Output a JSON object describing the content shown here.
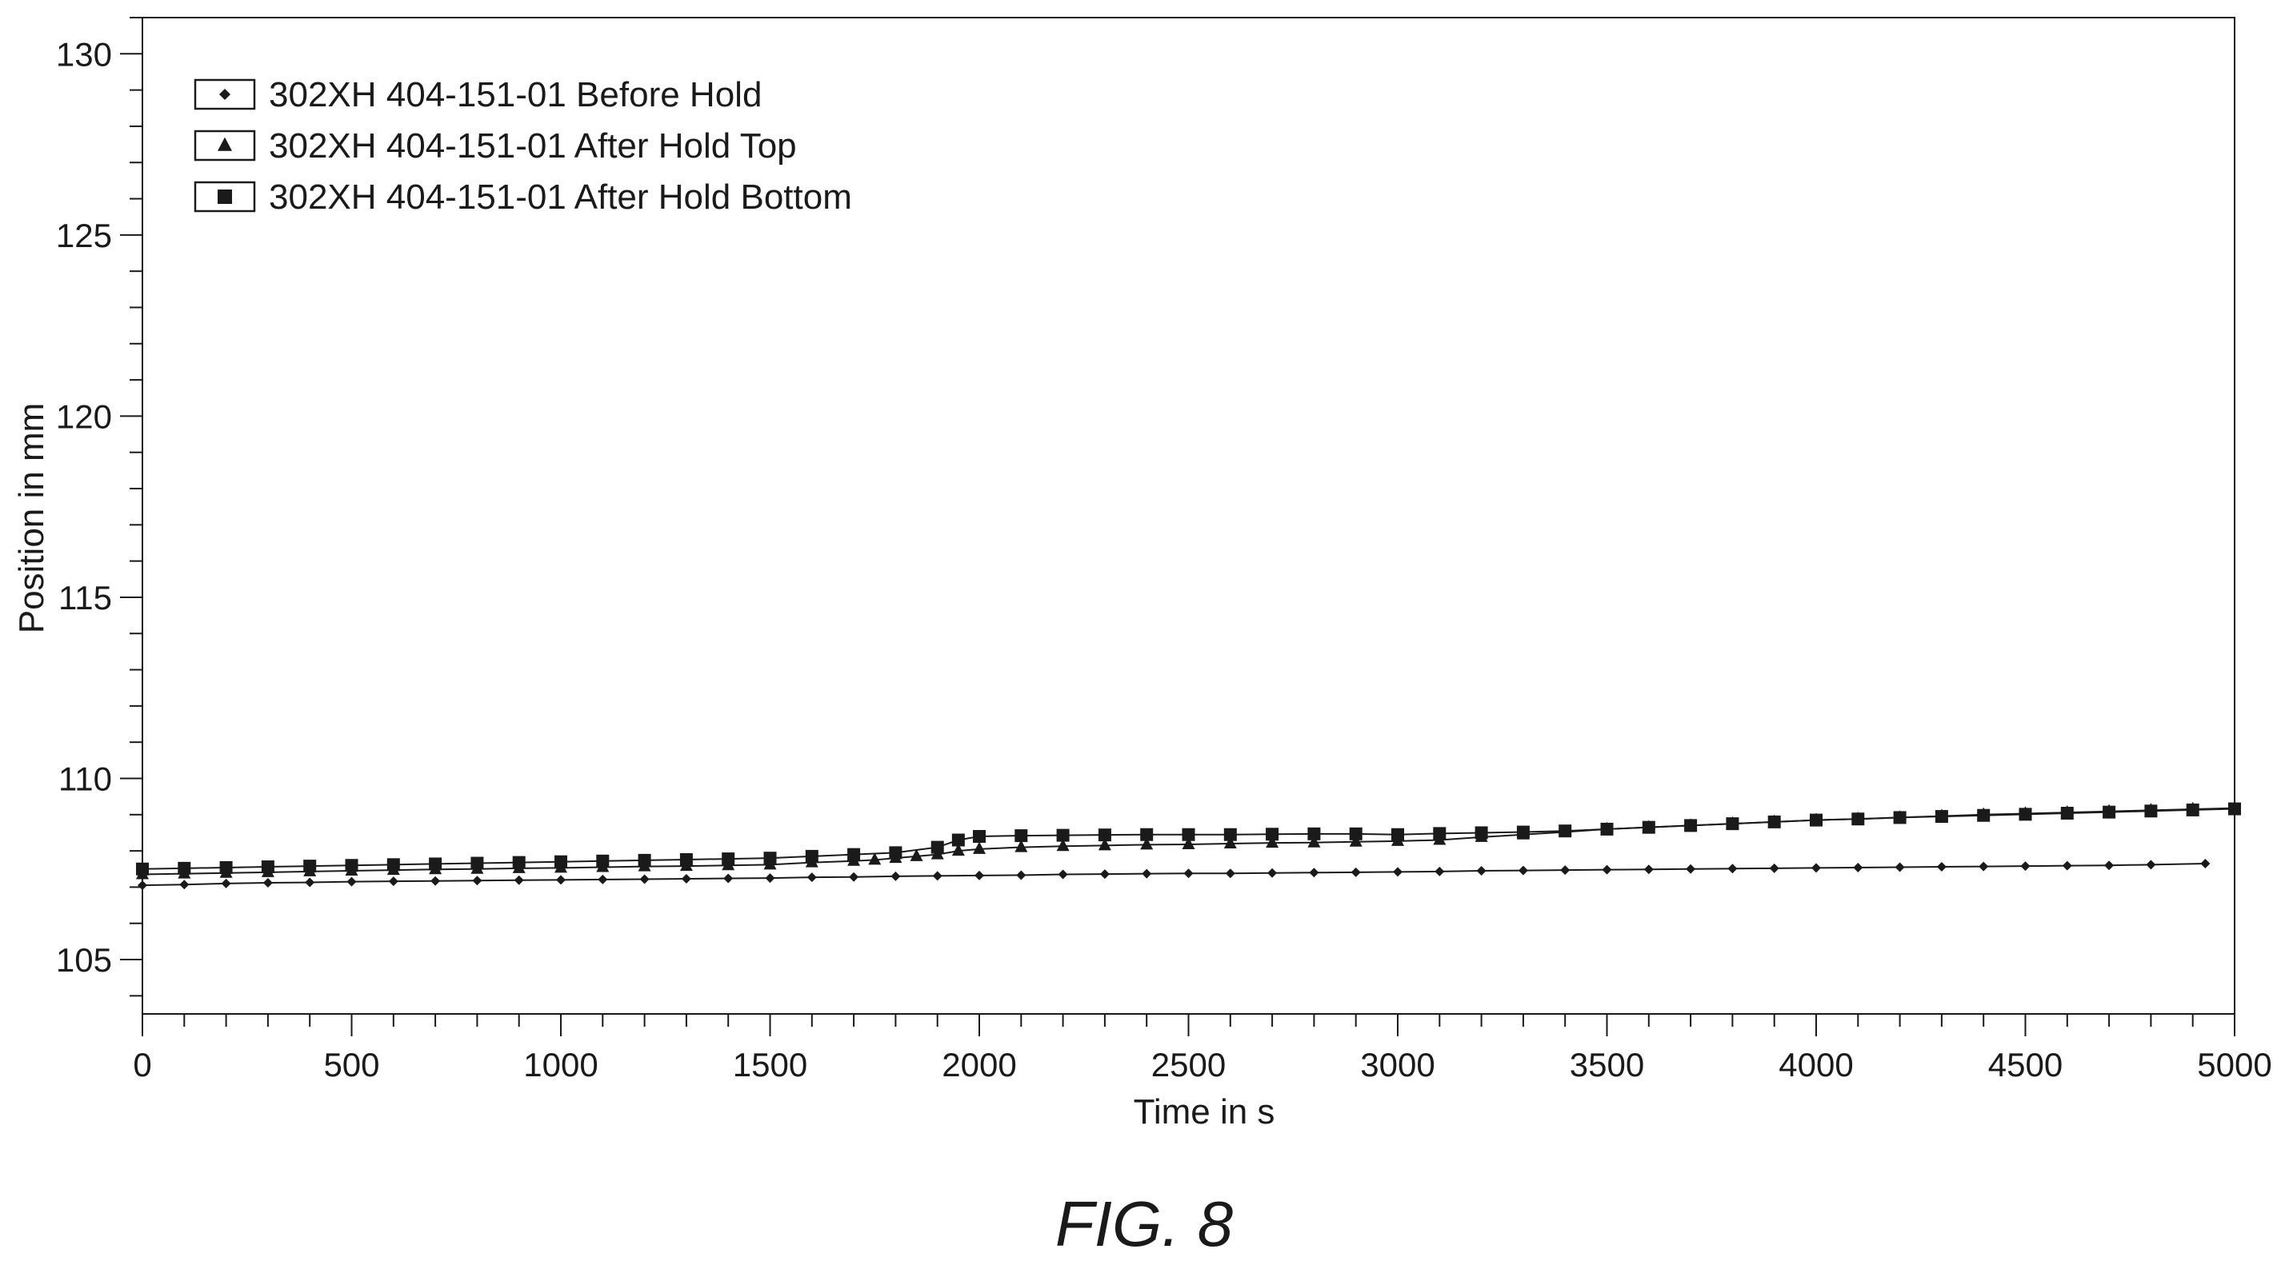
{
  "figure_label": "FIG. 8",
  "chart_data": {
    "type": "scatter",
    "title": "",
    "xlabel": "Time in s",
    "ylabel": "Position in mm",
    "xlim": [
      0,
      5000
    ],
    "ylim": [
      103.5,
      131
    ],
    "x_ticks": [
      0,
      500,
      1000,
      1500,
      2000,
      2500,
      3000,
      3500,
      4000,
      4500,
      5000
    ],
    "y_ticks": [
      105,
      110,
      115,
      120,
      125,
      130
    ],
    "grid": false,
    "legend_position": "top-left",
    "series": [
      {
        "name": "302XH 404-151-01 Before Hold",
        "marker": "diamond",
        "x": [
          0,
          100,
          200,
          300,
          400,
          500,
          600,
          700,
          800,
          900,
          1000,
          1100,
          1200,
          1300,
          1400,
          1500,
          1600,
          1700,
          1800,
          1900,
          2000,
          2100,
          2200,
          2300,
          2400,
          2500,
          2600,
          2700,
          2800,
          2900,
          3000,
          3100,
          3200,
          3300,
          3400,
          3500,
          3600,
          3700,
          3800,
          3900,
          4000,
          4100,
          4200,
          4300,
          4400,
          4500,
          4600,
          4700,
          4800,
          4930
        ],
        "y": [
          107.05,
          107.07,
          107.1,
          107.12,
          107.13,
          107.15,
          107.16,
          107.17,
          107.18,
          107.19,
          107.2,
          107.21,
          107.22,
          107.23,
          107.24,
          107.25,
          107.27,
          107.28,
          107.3,
          107.31,
          107.32,
          107.33,
          107.35,
          107.36,
          107.37,
          107.38,
          107.38,
          107.39,
          107.4,
          107.41,
          107.42,
          107.43,
          107.45,
          107.46,
          107.47,
          107.48,
          107.49,
          107.5,
          107.51,
          107.52,
          107.53,
          107.54,
          107.55,
          107.56,
          107.57,
          107.58,
          107.59,
          107.6,
          107.62,
          107.65
        ]
      },
      {
        "name": "302XH 404-151-01 After Hold Top",
        "marker": "triangle",
        "x": [
          0,
          100,
          200,
          300,
          400,
          500,
          600,
          700,
          800,
          900,
          1000,
          1100,
          1200,
          1300,
          1400,
          1500,
          1600,
          1700,
          1750,
          1800,
          1850,
          1900,
          1950,
          2000,
          2100,
          2200,
          2300,
          2400,
          2500,
          2600,
          2700,
          2800,
          2900,
          3000,
          3100,
          3200,
          3300,
          3400,
          3500,
          3600,
          3700,
          3800,
          3900,
          4000,
          4100,
          4200,
          4300,
          4400,
          4500,
          4600,
          4700,
          4800,
          4900,
          5000
        ],
        "y": [
          107.35,
          107.37,
          107.39,
          107.41,
          107.43,
          107.45,
          107.47,
          107.49,
          107.5,
          107.52,
          107.53,
          107.55,
          107.57,
          107.58,
          107.6,
          107.62,
          107.68,
          107.72,
          107.75,
          107.8,
          107.85,
          107.9,
          108.0,
          108.05,
          108.1,
          108.13,
          108.15,
          108.17,
          108.18,
          108.2,
          108.22,
          108.23,
          108.25,
          108.27,
          108.3,
          108.38,
          108.45,
          108.52,
          108.6,
          108.65,
          108.7,
          108.75,
          108.8,
          108.85,
          108.88,
          108.92,
          108.96,
          109.0,
          109.03,
          109.06,
          109.09,
          109.12,
          109.15,
          109.18
        ]
      },
      {
        "name": "302XH 404-151-01 After Hold Bottom",
        "marker": "square",
        "x": [
          0,
          100,
          200,
          300,
          400,
          500,
          600,
          700,
          800,
          900,
          1000,
          1100,
          1200,
          1300,
          1400,
          1500,
          1600,
          1700,
          1800,
          1900,
          1950,
          2000,
          2100,
          2200,
          2300,
          2400,
          2500,
          2600,
          2700,
          2800,
          2900,
          3000,
          3100,
          3200,
          3300,
          3400,
          3500,
          3600,
          3700,
          3800,
          3900,
          4000,
          4100,
          4200,
          4300,
          4400,
          4500,
          4600,
          4700,
          4800,
          4900,
          5000
        ],
        "y": [
          107.5,
          107.52,
          107.54,
          107.56,
          107.58,
          107.6,
          107.62,
          107.64,
          107.66,
          107.68,
          107.7,
          107.72,
          107.74,
          107.76,
          107.78,
          107.8,
          107.85,
          107.9,
          107.95,
          108.1,
          108.3,
          108.4,
          108.42,
          108.43,
          108.44,
          108.45,
          108.45,
          108.45,
          108.46,
          108.47,
          108.47,
          108.45,
          108.48,
          108.5,
          108.52,
          108.55,
          108.6,
          108.65,
          108.7,
          108.75,
          108.8,
          108.85,
          108.88,
          108.92,
          108.95,
          108.98,
          109.01,
          109.04,
          109.07,
          109.1,
          109.13,
          109.16
        ]
      }
    ]
  }
}
